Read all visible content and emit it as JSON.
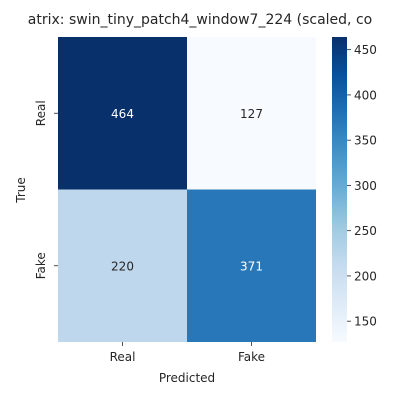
{
  "chart_data": {
    "type": "heatmap",
    "title": "atrix: swin_tiny_patch4_window7_224 (scaled, co",
    "xlabel": "Predicted",
    "ylabel": "True",
    "x_categories": [
      "Real",
      "Fake"
    ],
    "y_categories": [
      "Real",
      "Fake"
    ],
    "values": [
      [
        464,
        127
      ],
      [
        220,
        371
      ]
    ],
    "colormap": "Blues",
    "colorbar": {
      "range": [
        127,
        464
      ],
      "ticks": [
        150,
        200,
        250,
        300,
        350,
        400,
        450
      ],
      "tick_labels": [
        "150",
        "200",
        "250",
        "300",
        "350",
        "400",
        "450"
      ]
    },
    "annotation_colors": {
      "dark_cell": "#ffffff",
      "light_cell": "#262626"
    },
    "grid": false
  }
}
